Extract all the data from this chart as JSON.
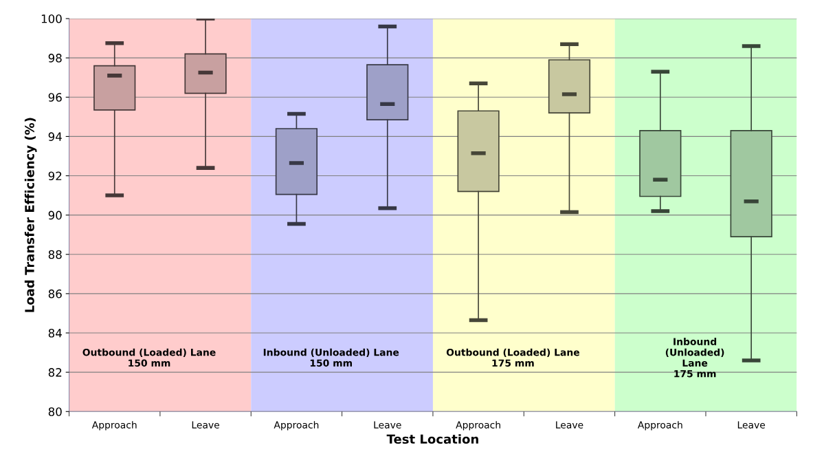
{
  "chart_data": {
    "type": "box",
    "xlabel": "Test Location",
    "ylabel": "Load Transfer Efficiency (%)",
    "categories": [
      "Approach",
      "Leave",
      "Approach",
      "Leave",
      "Approach",
      "Leave",
      "Approach",
      "Leave"
    ],
    "boxes": [
      {
        "low": 91.0,
        "q1": 95.35,
        "median": 97.1,
        "q3": 97.6,
        "high": 98.75
      },
      {
        "low": 92.4,
        "q1": 96.2,
        "median": 97.25,
        "q3": 98.2,
        "high": 100
      },
      {
        "low": 89.55,
        "q1": 91.05,
        "median": 92.65,
        "q3": 94.4,
        "high": 95.15
      },
      {
        "low": 90.35,
        "q1": 94.85,
        "median": 95.65,
        "q3": 97.65,
        "high": 99.6
      },
      {
        "low": 84.65,
        "q1": 91.2,
        "median": 93.15,
        "q3": 95.3,
        "high": 96.7
      },
      {
        "low": 90.15,
        "q1": 95.2,
        "median": 96.15,
        "q3": 97.9,
        "high": 98.7
      },
      {
        "low": 90.2,
        "q1": 90.95,
        "median": 91.8,
        "q3": 94.3,
        "high": 97.3
      },
      {
        "low": 82.6,
        "q1": 88.9,
        "median": 90.7,
        "q3": 94.3,
        "high": 98.6
      }
    ],
    "colors": [
      "#c8a0a0",
      "#c8a0a0",
      "#9ea0c8",
      "#9ea0c8",
      "#c8c8a0",
      "#c8c8a0",
      "#a0c8a0",
      "#a0c8a0"
    ],
    "ylim": [
      80,
      100
    ],
    "yticks": [
      80,
      82,
      84,
      86,
      88,
      90,
      92,
      94,
      96,
      98,
      100
    ],
    "grid": "y",
    "annotations": [
      "Outbound (Loaded) Lane\n150 mm",
      "Inbound (Unloaded) Lane\n150 mm",
      "Outbound (Loaded) Lane\n175 mm",
      "Inbound\n(Unloaded)\nLane\n175 mm"
    ]
  }
}
